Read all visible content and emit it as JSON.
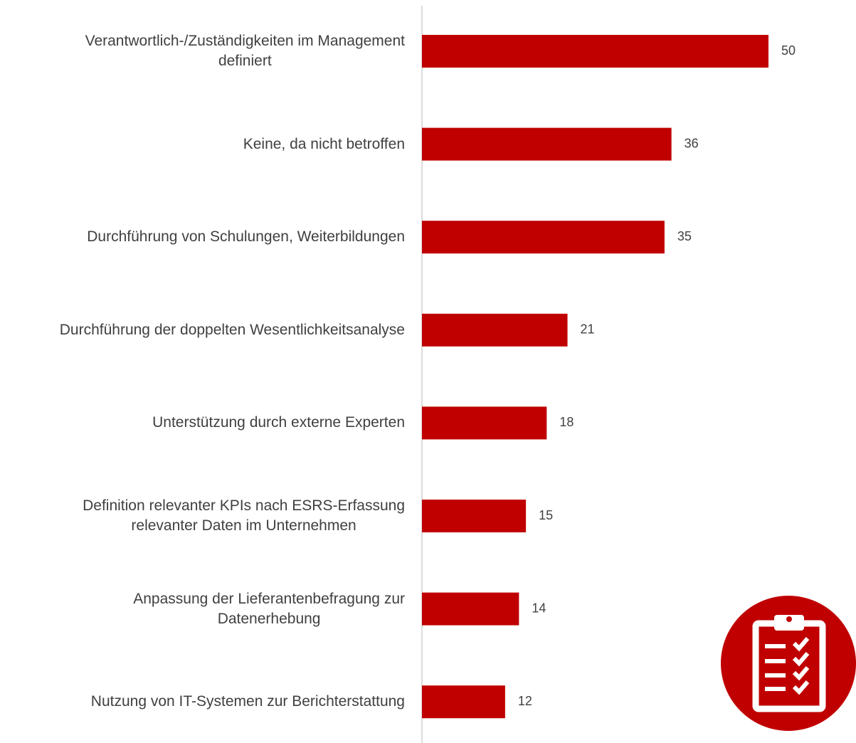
{
  "chart_data": {
    "type": "barh",
    "categories": [
      "Verantwortlich-/Zuständigkeiten im Management\ndefiniert",
      "Keine, da nicht betroffen",
      "Durchführung von Schulungen, Weiterbildungen",
      "Durchführung der doppelten Wesentlichkeitsanalyse",
      "Unterstützung durch externe Experten",
      "Definition relevanter KPIs nach ESRS-Erfassung\nrelevanter Daten im Unternehmen",
      "Anpassung der Lieferantenbefragung zur\nDatenerhebung",
      "Nutzung von IT-Systemen zur Berichterstattung"
    ],
    "values": [
      50,
      36,
      35,
      21,
      18,
      15,
      14,
      12
    ],
    "color": "#c00000",
    "xlim": [
      0,
      50
    ]
  }
}
